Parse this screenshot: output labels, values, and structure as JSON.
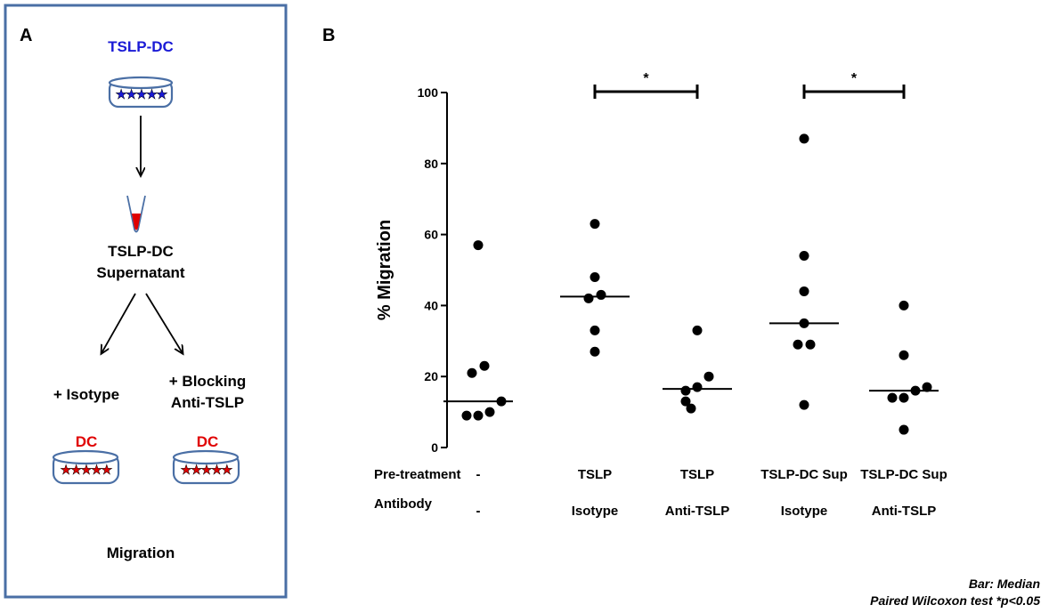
{
  "panel_a": {
    "label": "A",
    "source_cells": "TSLP-DC",
    "supernatant_line1": "TSLP-DC",
    "supernatant_line2": "Supernatant",
    "left_branch": "+ Isotype",
    "right_branch_line1": "+ Blocking",
    "right_branch_line2": "Anti-TSLP",
    "left_cells": "DC",
    "right_cells": "DC",
    "readout": "Migration",
    "colors": {
      "frame": "#4a6fa5",
      "source_text": "#1a1ad6",
      "dc_text": "#e00000",
      "blue_star": "#1a1ad6",
      "red_star": "#e00000",
      "dish": "#4a6fa5"
    }
  },
  "panel_b": {
    "label": "B"
  },
  "chart_data": {
    "type": "scatter",
    "ylabel": "% Migration",
    "ylim": [
      0,
      100
    ],
    "yticks": [
      0,
      20,
      40,
      60,
      80,
      100
    ],
    "row_labels": [
      "Pre-treatment",
      "Antibody"
    ],
    "groups": [
      {
        "pretreatment": "-",
        "antibody": "-",
        "values": [
          57,
          23,
          21,
          13,
          10,
          9,
          9
        ],
        "median": 13
      },
      {
        "pretreatment": "TSLP",
        "antibody": "Isotype",
        "values": [
          63,
          48,
          43,
          42,
          33,
          27
        ],
        "median": 42.5
      },
      {
        "pretreatment": "TSLP",
        "antibody": "Anti-TSLP",
        "values": [
          33,
          20,
          17,
          16,
          13,
          11
        ],
        "median": 16.5
      },
      {
        "pretreatment": "TSLP-DC Sup",
        "antibody": "Isotype",
        "values": [
          87,
          54,
          44,
          35,
          29,
          29,
          12
        ],
        "median": 35
      },
      {
        "pretreatment": "TSLP-DC Sup",
        "antibody": "Anti-TSLP",
        "values": [
          40,
          26,
          17,
          16,
          14,
          14,
          5
        ],
        "median": 16
      }
    ],
    "significance": [
      {
        "from_group": 1,
        "to_group": 2,
        "label": "*",
        "y": 101
      },
      {
        "from_group": 3,
        "to_group": 4,
        "label": "*",
        "y": 101
      }
    ],
    "footnote_line1": "Bar: Median",
    "footnote_line2": "Paired Wilcoxon test *p<0.05",
    "colors": {
      "points": "#000000",
      "axis": "#000000"
    }
  }
}
